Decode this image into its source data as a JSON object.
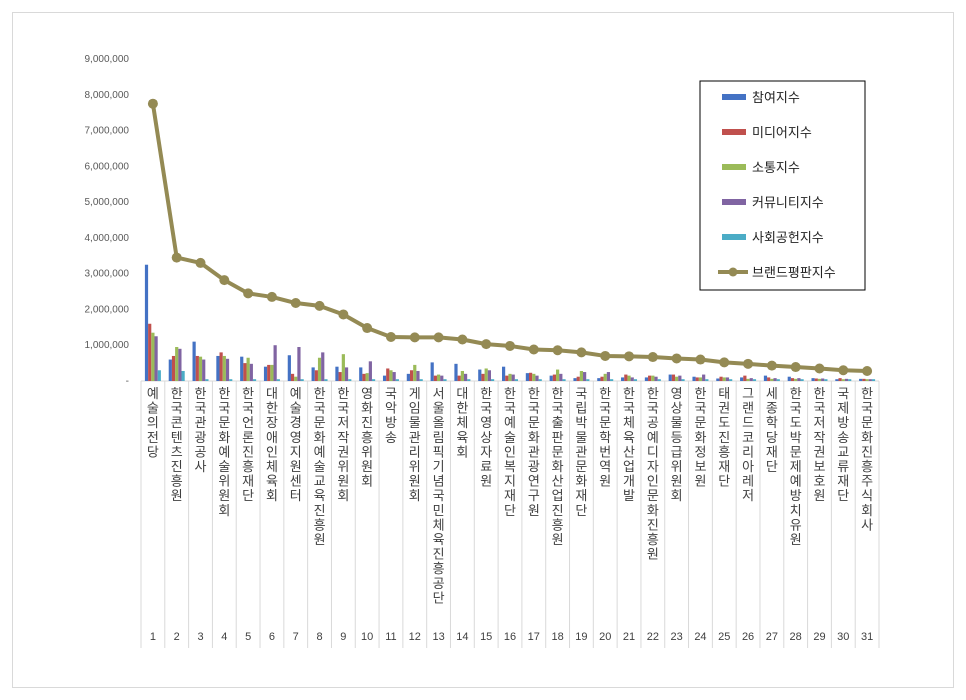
{
  "chart_data": {
    "type": "bar",
    "ylim": [
      0,
      9000000
    ],
    "yticks": [
      "-",
      "1,000,000",
      "2,000,000",
      "3,000,000",
      "4,000,000",
      "5,000,000",
      "6,000,000",
      "7,000,000",
      "8,000,000",
      "9,000,000"
    ],
    "grid": false,
    "legend_position": "top-right",
    "categories": [
      "예술의전당",
      "한국콘텐츠진흥원",
      "한국관광공사",
      "한국문화예술위원회",
      "한국언론진흥재단",
      "대한장애인체육회",
      "예술경영지원센터",
      "한국문화예술교육진흥원",
      "한국저작권위원회",
      "영화진흥위원회",
      "국악방송",
      "게임물관리위원회",
      "서울올림픽기념국민체육진흥공단",
      "대한체육회",
      "한국영상자료원",
      "한국예술인복지재단",
      "한국문화관광연구원",
      "한국출판문화산업진흥원",
      "국립박물관문화재단",
      "한국문학번역원",
      "한국체육산업개발",
      "한국공예디자인문화진흥원",
      "영상물등급위원회",
      "한국문화정보원",
      "태권도진흥재단",
      "그랜드코리아레저",
      "세종학당재단",
      "한국도박문제예방치유원",
      "한국저작권보호원",
      "국제방송교류재단",
      "한국문화진흥주식회사"
    ],
    "ranks": [
      "1",
      "2",
      "3",
      "4",
      "5",
      "6",
      "7",
      "8",
      "9",
      "10",
      "11",
      "12",
      "13",
      "14",
      "15",
      "16",
      "17",
      "18",
      "19",
      "20",
      "21",
      "22",
      "23",
      "24",
      "25",
      "26",
      "27",
      "28",
      "29",
      "30",
      "31"
    ],
    "series": [
      {
        "name": "참여지수",
        "color": "#4472c4",
        "values": [
          3250000,
          600000,
          1100000,
          700000,
          680000,
          400000,
          720000,
          380000,
          400000,
          380000,
          150000,
          200000,
          520000,
          480000,
          320000,
          400000,
          220000,
          150000,
          80000,
          80000,
          100000,
          100000,
          180000,
          120000,
          70000,
          100000,
          150000,
          120000,
          80000,
          50000,
          60000
        ]
      },
      {
        "name": "미디어지수",
        "color": "#c0504d",
        "values": [
          1600000,
          700000,
          700000,
          800000,
          500000,
          450000,
          200000,
          300000,
          250000,
          200000,
          350000,
          300000,
          150000,
          150000,
          200000,
          150000,
          230000,
          180000,
          120000,
          120000,
          180000,
          150000,
          180000,
          100000,
          120000,
          150000,
          100000,
          80000,
          70000,
          80000,
          60000
        ]
      },
      {
        "name": "소통지수",
        "color": "#9bbb59",
        "values": [
          1350000,
          950000,
          680000,
          700000,
          650000,
          450000,
          120000,
          650000,
          750000,
          220000,
          300000,
          450000,
          180000,
          280000,
          350000,
          200000,
          200000,
          320000,
          280000,
          200000,
          150000,
          150000,
          120000,
          100000,
          100000,
          60000,
          60000,
          60000,
          60000,
          50000,
          50000
        ]
      },
      {
        "name": "커뮤니티지수",
        "color": "#8064a2",
        "values": [
          1250000,
          900000,
          600000,
          620000,
          480000,
          1000000,
          950000,
          800000,
          380000,
          550000,
          250000,
          280000,
          150000,
          200000,
          300000,
          180000,
          150000,
          200000,
          250000,
          250000,
          100000,
          120000,
          150000,
          180000,
          100000,
          80000,
          80000,
          80000,
          70000,
          60000,
          50000
        ]
      },
      {
        "name": "사회공헌지수",
        "color": "#4bacc6",
        "values": [
          300000,
          280000,
          50000,
          50000,
          50000,
          50000,
          50000,
          50000,
          50000,
          50000,
          50000,
          50000,
          50000,
          50000,
          50000,
          50000,
          50000,
          50000,
          50000,
          50000,
          50000,
          50000,
          50000,
          50000,
          50000,
          50000,
          50000,
          50000,
          50000,
          50000,
          50000
        ]
      },
      {
        "name": "브랜드평판지수",
        "color": "#948a54",
        "type": "line",
        "values": [
          7750000,
          3450000,
          3300000,
          2820000,
          2450000,
          2350000,
          2180000,
          2100000,
          1860000,
          1480000,
          1230000,
          1220000,
          1220000,
          1160000,
          1030000,
          980000,
          880000,
          860000,
          800000,
          700000,
          690000,
          670000,
          630000,
          600000,
          520000,
          480000,
          430000,
          390000,
          350000,
          300000,
          280000
        ]
      }
    ]
  }
}
